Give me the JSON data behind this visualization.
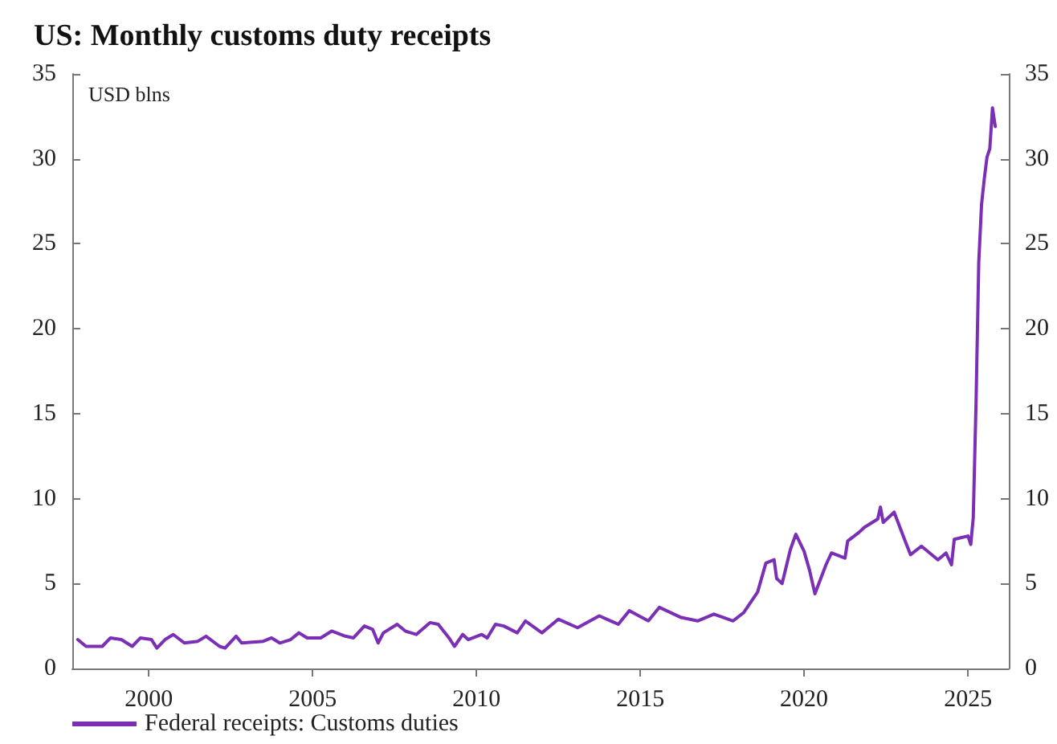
{
  "chart_data": {
    "type": "line",
    "title": "US: Monthly customs duty receipts",
    "ylabel": "USD blns",
    "legend": "bottom left",
    "grid": false,
    "xlim": [
      "1997-09",
      "2026-04"
    ],
    "xticks": [
      "2000",
      "2005",
      "2010",
      "2015",
      "2020",
      "2025"
    ],
    "ylim": [
      0,
      35
    ],
    "yticks": [
      0,
      5,
      10,
      15,
      20,
      25,
      30,
      35
    ],
    "y2lim": [
      0,
      35
    ],
    "y2ticks": [
      0,
      5,
      10,
      15,
      20,
      25,
      30,
      35
    ],
    "x": [
      "1997-11",
      "1998-02",
      "1998-08",
      "1998-11",
      "1999-03",
      "1999-07",
      "1999-10",
      "2000-02",
      "2000-04",
      "2000-07",
      "2000-10",
      "2001-02",
      "2001-07",
      "2001-10",
      "2002-03",
      "2002-05",
      "2002-09",
      "2002-11",
      "2003-07",
      "2003-10",
      "2004-01",
      "2004-05",
      "2004-08",
      "2004-11",
      "2005-04",
      "2005-08",
      "2006-01",
      "2006-04",
      "2006-08",
      "2006-11",
      "2007-01",
      "2007-03",
      "2007-08",
      "2007-11",
      "2008-03",
      "2008-08",
      "2008-11",
      "2009-03",
      "2009-05",
      "2009-08",
      "2009-10",
      "2010-03",
      "2010-05",
      "2010-08",
      "2010-11",
      "2011-04",
      "2011-07",
      "2012-01",
      "2012-07",
      "2013-02",
      "2013-10",
      "2014-05",
      "2014-09",
      "2015-04",
      "2015-08",
      "2016-04",
      "2016-10",
      "2017-04",
      "2017-11",
      "2018-03",
      "2018-08",
      "2018-11",
      "2019-02",
      "2019-03",
      "2019-05",
      "2019-08",
      "2019-10",
      "2020-01",
      "2020-03",
      "2020-05",
      "2020-09",
      "2020-11",
      "2021-04",
      "2021-05",
      "2021-09",
      "2021-11",
      "2022-04",
      "2022-05",
      "2022-06",
      "2022-10",
      "2023-02",
      "2023-04",
      "2023-08",
      "2024-02",
      "2024-05",
      "2024-07",
      "2024-08",
      "2025-01",
      "2025-02",
      "2025-03",
      "2025-04",
      "2025-05",
      "2025-06",
      "2025-07",
      "2025-08",
      "2025-09",
      "2025-10",
      "2025-11"
    ],
    "series": [
      {
        "name": "Federal receipts: Customs duties",
        "color": "#7b2fb5",
        "values": [
          1.7,
          1.3,
          1.3,
          1.8,
          1.7,
          1.3,
          1.8,
          1.7,
          1.2,
          1.7,
          2.0,
          1.5,
          1.6,
          1.9,
          1.3,
          1.2,
          1.9,
          1.5,
          1.6,
          1.8,
          1.5,
          1.7,
          2.1,
          1.8,
          1.8,
          2.2,
          1.9,
          1.8,
          2.5,
          2.3,
          1.5,
          2.1,
          2.6,
          2.2,
          2.0,
          2.7,
          2.6,
          1.8,
          1.3,
          2.0,
          1.7,
          2.0,
          1.8,
          2.6,
          2.5,
          2.1,
          2.8,
          2.1,
          2.9,
          2.4,
          3.1,
          2.6,
          3.4,
          2.8,
          3.6,
          3.0,
          2.8,
          3.2,
          2.8,
          3.3,
          4.5,
          6.2,
          6.4,
          5.3,
          5.0,
          7.0,
          7.9,
          6.9,
          5.8,
          4.4,
          6.1,
          6.8,
          6.5,
          7.5,
          8.0,
          8.3,
          8.8,
          9.5,
          8.6,
          9.2,
          7.5,
          6.7,
          7.2,
          6.4,
          6.8,
          6.1,
          7.6,
          7.8,
          7.3,
          8.9,
          15.7,
          23.9,
          27.3,
          28.8,
          30.1,
          30.6,
          33.0,
          31.9
        ]
      }
    ]
  }
}
